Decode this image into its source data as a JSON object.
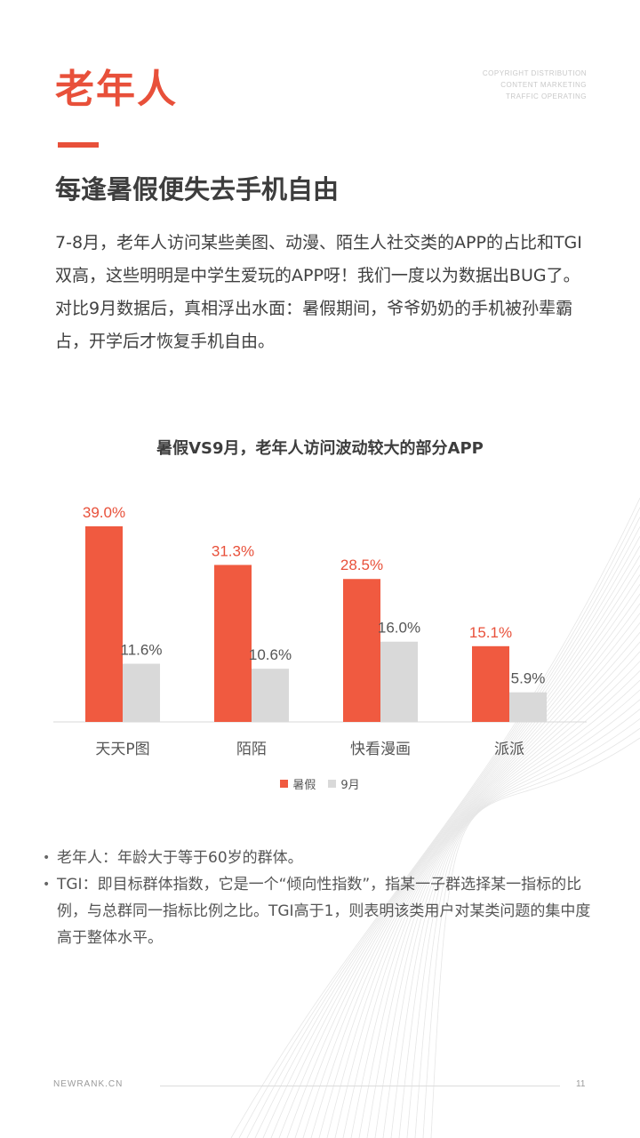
{
  "header": {
    "title": "老年人",
    "copyright_lines": [
      "COPYRIGHT DISTRIBUTION",
      "CONTENT MARKETING",
      "TRAFFIC OPERATING"
    ]
  },
  "subtitle": "每逢暑假便失去手机自由",
  "body": {
    "paragraph1": "7-8月，老年人访问某些美图、动漫、陌生人社交类的APP的占比和TGI双高，这些明明是中学生爱玩的APP呀！我们一度以为数据出BUG了。",
    "paragraph2": "对比9月数据后，真相浮出水面：暑假期间，爷爷奶奶的手机被孙辈霸占，开学后才恢复手机自由。"
  },
  "colors": {
    "accent": "#e8503a",
    "bar_summer": "#f05a40",
    "bar_sept": "#d9d9d9"
  },
  "chart_data": {
    "type": "bar",
    "title": "暑假VS9月，老年人访问波动较大的部分APP",
    "categories": [
      "天天P图",
      "陌陌",
      "快看漫画",
      "派派"
    ],
    "series": [
      {
        "name": "暑假",
        "values": [
          39.0,
          31.3,
          28.5,
          15.1
        ],
        "labels": [
          "39.0%",
          "31.3%",
          "28.5%",
          "15.1%"
        ]
      },
      {
        "name": "9月",
        "values": [
          11.6,
          10.6,
          16.0,
          5.9
        ],
        "labels": [
          "11.6%",
          "10.6%",
          "16.0%",
          "5.9%"
        ]
      }
    ],
    "legend": [
      "暑假",
      "9月"
    ],
    "legend_position": "bottom",
    "ylim": [
      0,
      39.0
    ],
    "grid": false
  },
  "notes": [
    "老年人：年龄大于等于60岁的群体。",
    "TGI：即目标群体指数，它是一个“倾向性指数”，指某一子群选择某一指标的比例，与总群同一指标比例之比。TGI高于1，则表明该类用户对某类问题的集中度高于整体水平。"
  ],
  "footer": {
    "site": "NEWRANK.CN",
    "page_number": "11"
  }
}
